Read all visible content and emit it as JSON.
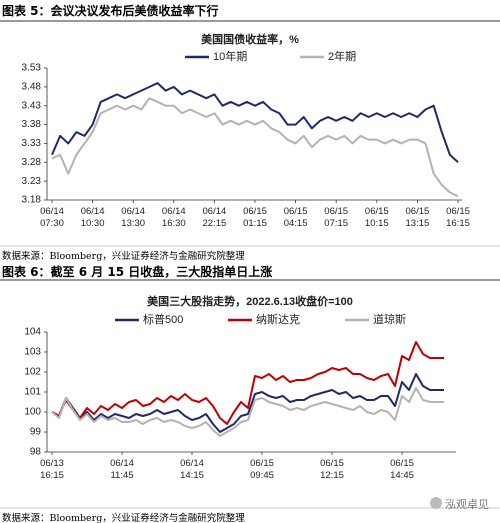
{
  "captions": [
    "图表 5：会议决议发布后美债收益率下行",
    "图表 6：截至 6 月 15 日收盘，三大股指单日上涨"
  ],
  "sources": [
    "数据来源：Bloomberg，兴业证券经济与金融研究院整理",
    "数据来源：Bloomberg，兴业证券经济与金融研究院整理"
  ],
  "watermark": "泓观卓见",
  "chart_data": [
    {
      "type": "line",
      "title": "美国国债收益率，%",
      "legend": "top",
      "grid": false,
      "categories": [
        "06/14 07:30",
        null,
        null,
        null,
        null,
        "06/14 10:30",
        null,
        null,
        null,
        null,
        "06/14 13:30",
        null,
        null,
        null,
        null,
        "06/14 16:30",
        null,
        null,
        null,
        null,
        "06/14 22:15",
        null,
        null,
        null,
        null,
        "06/15 01:15",
        null,
        null,
        null,
        null,
        "06/15 04:15",
        null,
        null,
        null,
        null,
        "06/15 07:15",
        null,
        null,
        null,
        null,
        "06/15 10:15",
        null,
        null,
        null,
        null,
        "06/15 13:15",
        null,
        null,
        null,
        null,
        "06/15 16:15"
      ],
      "ylim": [
        3.18,
        3.53
      ],
      "yticks": [
        3.18,
        3.23,
        3.28,
        3.33,
        3.38,
        3.43,
        3.48,
        3.53
      ],
      "series": [
        {
          "name": "10年期",
          "color": "#1f2a6b",
          "values": [
            3.3,
            3.35,
            3.33,
            3.36,
            3.35,
            3.38,
            3.44,
            3.45,
            3.46,
            3.45,
            3.46,
            3.47,
            3.48,
            3.49,
            3.47,
            3.48,
            3.46,
            3.47,
            3.46,
            3.45,
            3.46,
            3.43,
            3.44,
            3.43,
            3.44,
            3.43,
            3.44,
            3.42,
            3.41,
            3.38,
            3.38,
            3.4,
            3.37,
            3.39,
            3.4,
            3.39,
            3.4,
            3.39,
            3.41,
            3.4,
            3.41,
            3.4,
            3.41,
            3.4,
            3.41,
            3.4,
            3.42,
            3.43,
            3.36,
            3.3,
            3.28
          ]
        },
        {
          "name": "2年期",
          "color": "#b3b3b3",
          "values": [
            3.29,
            3.3,
            3.25,
            3.3,
            3.33,
            3.36,
            3.41,
            3.42,
            3.43,
            3.42,
            3.43,
            3.42,
            3.45,
            3.44,
            3.43,
            3.43,
            3.41,
            3.42,
            3.41,
            3.4,
            3.41,
            3.38,
            3.39,
            3.38,
            3.39,
            3.38,
            3.39,
            3.37,
            3.36,
            3.34,
            3.33,
            3.35,
            3.32,
            3.34,
            3.35,
            3.34,
            3.35,
            3.33,
            3.35,
            3.34,
            3.34,
            3.33,
            3.34,
            3.33,
            3.34,
            3.34,
            3.33,
            3.25,
            3.22,
            3.2,
            3.19
          ]
        }
      ]
    },
    {
      "type": "line",
      "title": "美国三大股指走势，2022.6.13收盘价=100",
      "legend": "top",
      "grid": false,
      "categories": [
        "06/13 16:15",
        null,
        null,
        null,
        null,
        null,
        null,
        null,
        null,
        null,
        "06/14 11:45",
        null,
        null,
        null,
        null,
        null,
        null,
        null,
        null,
        null,
        "06/14 14:15",
        null,
        null,
        null,
        null,
        null,
        null,
        null,
        null,
        null,
        "06/15 09:45",
        null,
        null,
        null,
        null,
        null,
        null,
        null,
        null,
        null,
        "06/15 12:15",
        null,
        null,
        null,
        null,
        null,
        null,
        null,
        null,
        null,
        "06/15 14:45",
        null,
        null,
        null,
        null,
        null,
        null
      ],
      "ylim": [
        98,
        104
      ],
      "yticks": [
        98,
        99,
        100,
        101,
        102,
        103,
        104
      ],
      "series": [
        {
          "name": "标普500",
          "color": "#1f2a6b",
          "values": [
            100,
            99.8,
            100.7,
            100.2,
            99.7,
            100.0,
            99.6,
            99.9,
            99.7,
            99.9,
            99.8,
            99.7,
            99.9,
            99.8,
            99.9,
            100.1,
            99.9,
            100.0,
            100.1,
            99.8,
            99.6,
            99.7,
            99.9,
            99.4,
            99.0,
            99.2,
            99.4,
            99.8,
            99.9,
            100.9,
            101.0,
            100.8,
            100.7,
            100.8,
            100.5,
            100.6,
            100.6,
            100.8,
            100.9,
            101.0,
            101.1,
            100.9,
            101.0,
            100.7,
            100.8,
            100.6,
            100.6,
            100.8,
            100.8,
            100.3,
            101.5,
            101.1,
            101.9,
            101.3,
            101.1,
            101.1,
            101.1
          ]
        },
        {
          "name": "纳斯达克",
          "color": "#c00000",
          "values": [
            100,
            99.8,
            100.6,
            100.1,
            99.7,
            100.2,
            99.9,
            100.3,
            100.1,
            100.4,
            100.2,
            100.5,
            100.6,
            100.3,
            100.4,
            100.7,
            100.5,
            100.8,
            100.6,
            100.9,
            100.6,
            100.5,
            100.7,
            100.3,
            99.7,
            99.4,
            100.0,
            100.5,
            100.2,
            101.8,
            101.7,
            101.9,
            101.6,
            101.8,
            101.5,
            101.6,
            101.6,
            101.7,
            101.9,
            102.0,
            102.2,
            102.1,
            102.2,
            101.9,
            101.9,
            101.7,
            101.6,
            101.8,
            101.9,
            101.3,
            102.8,
            102.6,
            103.5,
            102.9,
            102.7,
            102.7,
            102.7
          ]
        },
        {
          "name": "道琼斯",
          "color": "#b3b3b3",
          "values": [
            100,
            99.7,
            100.7,
            100.1,
            99.6,
            99.9,
            99.5,
            99.8,
            99.6,
            99.7,
            99.5,
            99.5,
            99.6,
            99.4,
            99.6,
            99.7,
            99.5,
            99.6,
            99.5,
            99.3,
            99.2,
            99.3,
            99.5,
            99.1,
            98.8,
            99.0,
            99.2,
            99.5,
            99.6,
            100.6,
            100.7,
            100.5,
            100.4,
            100.3,
            100.1,
            100.2,
            100.1,
            100.3,
            100.4,
            100.5,
            100.4,
            100.3,
            100.2,
            100.1,
            100.3,
            100.0,
            99.9,
            100.1,
            100.0,
            99.6,
            100.8,
            100.5,
            101.2,
            100.6,
            100.5,
            100.5,
            100.5
          ]
        }
      ]
    }
  ]
}
